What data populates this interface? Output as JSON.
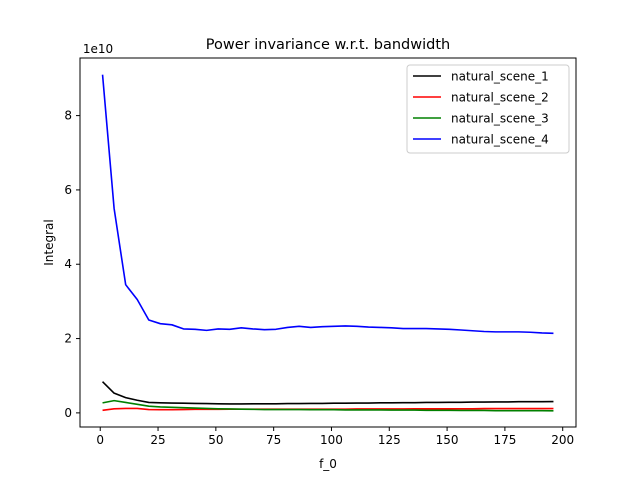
{
  "chart_data": {
    "type": "line",
    "title": "Power invariance w.r.t. bandwidth",
    "xlabel": "f_0",
    "ylabel": "Integral",
    "y_scale_label": "1e10",
    "xlim": [
      -8.75,
      205.75
    ],
    "ylim": [
      -0.38,
      9.55
    ],
    "x_ticks": [
      0,
      25,
      50,
      75,
      100,
      125,
      150,
      175,
      200
    ],
    "y_ticks": [
      0,
      2,
      4,
      6,
      8
    ],
    "grid": false,
    "legend_position": "top-right",
    "series": [
      {
        "name": "natural_scene_1",
        "color": "#000000",
        "x": [
          1,
          6,
          11,
          16,
          21,
          26,
          31,
          36,
          41,
          46,
          51,
          56,
          61,
          66,
          71,
          76,
          81,
          86,
          91,
          96,
          101,
          106,
          111,
          116,
          121,
          126,
          131,
          136,
          141,
          146,
          151,
          156,
          161,
          166,
          171,
          176,
          181,
          186,
          191,
          196
        ],
        "values": [
          0.84,
          0.53,
          0.41,
          0.34,
          0.28,
          0.27,
          0.265,
          0.26,
          0.255,
          0.25,
          0.245,
          0.24,
          0.24,
          0.245,
          0.245,
          0.245,
          0.25,
          0.25,
          0.255,
          0.255,
          0.26,
          0.26,
          0.265,
          0.265,
          0.27,
          0.27,
          0.275,
          0.275,
          0.28,
          0.28,
          0.285,
          0.285,
          0.29,
          0.29,
          0.295,
          0.295,
          0.3,
          0.3,
          0.3,
          0.305
        ]
      },
      {
        "name": "natural_scene_2",
        "color": "#ff0000",
        "x": [
          1,
          6,
          11,
          16,
          21,
          26,
          31,
          36,
          41,
          46,
          51,
          56,
          61,
          66,
          71,
          76,
          81,
          86,
          91,
          96,
          101,
          106,
          111,
          116,
          121,
          126,
          131,
          136,
          141,
          146,
          151,
          156,
          161,
          166,
          171,
          176,
          181,
          186,
          191,
          196
        ],
        "values": [
          0.07,
          0.11,
          0.12,
          0.12,
          0.09,
          0.085,
          0.085,
          0.09,
          0.095,
          0.095,
          0.095,
          0.1,
          0.1,
          0.1,
          0.1,
          0.1,
          0.1,
          0.1,
          0.1,
          0.1,
          0.1,
          0.1,
          0.105,
          0.105,
          0.105,
          0.105,
          0.105,
          0.11,
          0.11,
          0.11,
          0.11,
          0.11,
          0.11,
          0.115,
          0.115,
          0.115,
          0.115,
          0.115,
          0.115,
          0.115
        ]
      },
      {
        "name": "natural_scene_3",
        "color": "#008000",
        "x": [
          1,
          6,
          11,
          16,
          21,
          26,
          31,
          36,
          41,
          46,
          51,
          56,
          61,
          66,
          71,
          76,
          81,
          86,
          91,
          96,
          101,
          106,
          111,
          116,
          121,
          126,
          131,
          136,
          141,
          146,
          151,
          156,
          161,
          166,
          171,
          176,
          181,
          186,
          191,
          196
        ],
        "values": [
          0.27,
          0.33,
          0.28,
          0.23,
          0.18,
          0.16,
          0.15,
          0.14,
          0.13,
          0.12,
          0.11,
          0.105,
          0.1,
          0.095,
          0.09,
          0.09,
          0.09,
          0.09,
          0.085,
          0.085,
          0.085,
          0.08,
          0.08,
          0.08,
          0.08,
          0.075,
          0.075,
          0.075,
          0.07,
          0.07,
          0.07,
          0.065,
          0.065,
          0.065,
          0.06,
          0.06,
          0.06,
          0.06,
          0.06,
          0.055
        ]
      },
      {
        "name": "natural_scene_4",
        "color": "#0000ff",
        "x": [
          1,
          6,
          11,
          16,
          21,
          26,
          31,
          36,
          41,
          46,
          51,
          56,
          61,
          66,
          71,
          76,
          81,
          86,
          91,
          96,
          101,
          106,
          111,
          116,
          121,
          126,
          131,
          136,
          141,
          146,
          151,
          156,
          161,
          166,
          171,
          176,
          181,
          186,
          191,
          196
        ],
        "values": [
          9.1,
          5.5,
          3.45,
          3.05,
          2.5,
          2.4,
          2.37,
          2.26,
          2.25,
          2.22,
          2.26,
          2.25,
          2.29,
          2.26,
          2.24,
          2.25,
          2.3,
          2.33,
          2.3,
          2.32,
          2.33,
          2.34,
          2.33,
          2.31,
          2.3,
          2.29,
          2.27,
          2.27,
          2.27,
          2.26,
          2.25,
          2.23,
          2.21,
          2.19,
          2.18,
          2.18,
          2.18,
          2.17,
          2.15,
          2.14
        ]
      }
    ]
  }
}
